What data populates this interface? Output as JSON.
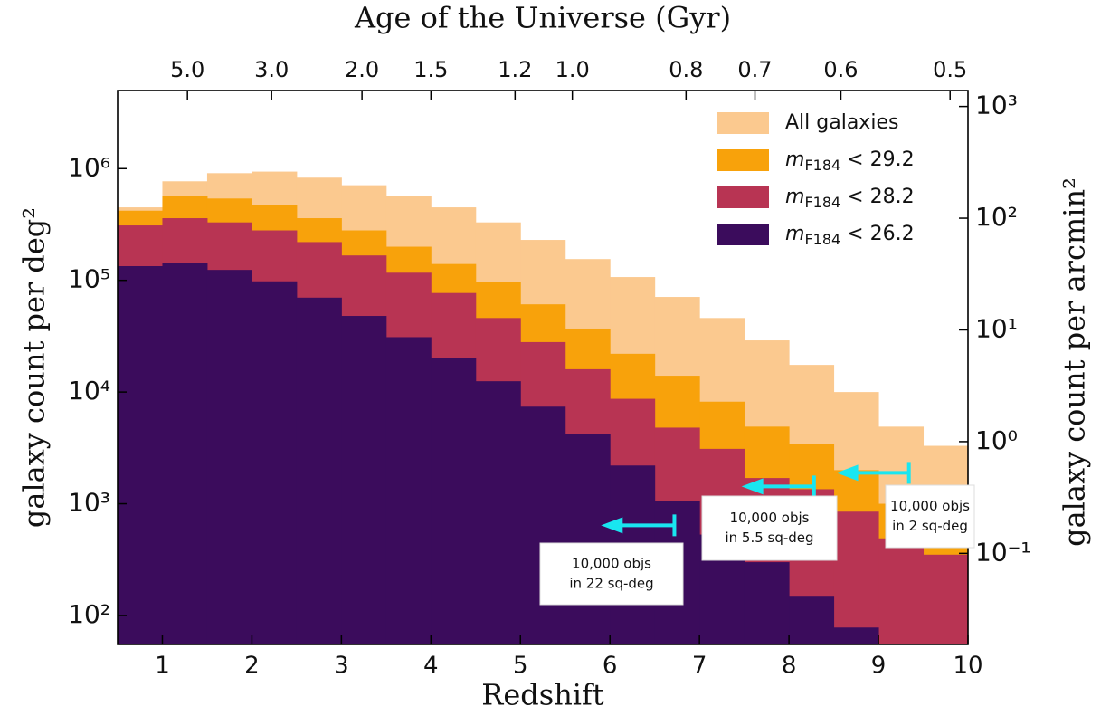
{
  "chart_data": {
    "type": "histogram",
    "title": "Age of the Universe (Gyr)",
    "xlabel": "Redshift",
    "ylabel": "galaxy count per deg²",
    "y2label": "galaxy count per arcmin²",
    "bins": [
      0.5,
      1,
      1.5,
      2,
      2.5,
      3,
      3.5,
      4,
      4.5,
      5,
      5.5,
      6,
      6.5,
      7,
      7.5,
      8,
      8.5,
      9,
      9.5,
      10
    ],
    "series": [
      {
        "name": "All galaxies",
        "color": "#fbc98f",
        "values": [
          450000,
          770000,
          910000,
          940000,
          830000,
          710000,
          570000,
          450000,
          330000,
          230000,
          155000,
          107000,
          71000,
          46000,
          29000,
          17500,
          10000,
          4900,
          3300
        ]
      },
      {
        "name": "mF184 < 29.2",
        "color": "#f8a20b",
        "values": [
          420000,
          570000,
          540000,
          470000,
          360000,
          280000,
          200000,
          140000,
          96000,
          61000,
          37000,
          22000,
          14000,
          8200,
          4900,
          3400,
          2000,
          1000,
          930
        ]
      },
      {
        "name": "mF184 < 28.2",
        "color": "#b83453",
        "values": [
          310000,
          360000,
          330000,
          280000,
          220000,
          167000,
          117000,
          77000,
          46000,
          28000,
          16000,
          8700,
          4800,
          3100,
          1700,
          1350,
          850,
          490,
          350
        ]
      },
      {
        "name": "mF184 < 26.2",
        "color": "#3b0c5c",
        "values": [
          134000,
          144000,
          124000,
          98000,
          70000,
          48000,
          31000,
          20000,
          12500,
          7400,
          4200,
          2200,
          1050,
          530,
          300,
          150,
          78,
          null,
          null
        ]
      }
    ],
    "xlim": [
      0.5,
      10
    ],
    "xticks": [
      1,
      2,
      3,
      4,
      5,
      6,
      7,
      8,
      9,
      10
    ],
    "x2ticks": [
      {
        "value": 1.28,
        "label": "5.0"
      },
      {
        "value": 2.22,
        "label": "3.0"
      },
      {
        "value": 3.23,
        "label": "2.0"
      },
      {
        "value": 4.0,
        "label": "1.5"
      },
      {
        "value": 4.94,
        "label": "1.2"
      },
      {
        "value": 5.58,
        "label": "1.0"
      },
      {
        "value": 6.85,
        "label": "0.8"
      },
      {
        "value": 7.62,
        "label": "0.7"
      },
      {
        "value": 8.58,
        "label": "0.6"
      },
      {
        "value": 9.8,
        "label": "0.5"
      }
    ],
    "ylim": [
      55,
      5000000
    ],
    "log_y": true,
    "yticks": [
      {
        "value": 100,
        "label": "10²"
      },
      {
        "value": 1000,
        "label": "10³"
      },
      {
        "value": 10000,
        "label": "10⁴"
      },
      {
        "value": 100000,
        "label": "10⁵"
      },
      {
        "value": 1000000,
        "label": "10⁶"
      }
    ],
    "y2lim": [
      0.0153,
      1389
    ],
    "y2ticks": [
      {
        "value": 0.1,
        "label": "10⁻¹"
      },
      {
        "value": 1,
        "label": "10⁰"
      },
      {
        "value": 10,
        "label": "10¹"
      },
      {
        "value": 100,
        "label": "10²"
      },
      {
        "value": 1000,
        "label": "10³"
      }
    ],
    "legend": "upper right",
    "annotations": [
      {
        "lines": [
          "10,000 objs",
          "in 22 sq-deg"
        ],
        "x": [
          5.9,
          6.72
        ],
        "y": 641
      },
      {
        "lines": [
          "10,000 objs",
          "in 5.5 sq-deg"
        ],
        "x": [
          7.47,
          8.28
        ],
        "y": 1430
      },
      {
        "lines": [
          "10,000 objs",
          "in 2 sq-deg"
        ],
        "x": [
          8.53,
          9.34
        ],
        "y": 1890
      }
    ],
    "annotation_color": "#19e6f0"
  }
}
